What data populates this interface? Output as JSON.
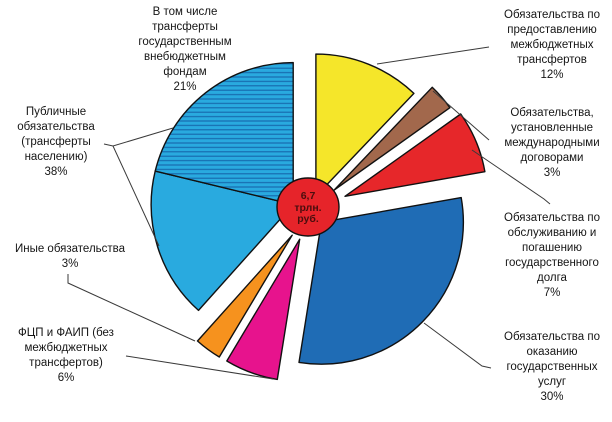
{
  "chart_data": {
    "type": "pie",
    "title": "",
    "center_total_label": "6,7\nтрлн.\nруб.",
    "legend_position": "none",
    "grid": false,
    "hatch_line_color": "#1666AB",
    "outline_color": "#111111",
    "leader_line_color": "#3a3a3a",
    "background_color": "#ffffff",
    "slices": [
      {
        "name": "Обязательства по предоставлению межбюджетных трансфертов",
        "pct_shown": "12%",
        "value": 12,
        "color": "#F5E62A",
        "explode": 16
      },
      {
        "name": "Обязательства, установленные международными договорами",
        "pct_shown": "3%",
        "value": 3,
        "color": "#A2684C",
        "explode": 32
      },
      {
        "name": "Обязательства по обслуживанию и погашению государственного долга",
        "pct_shown": "7%",
        "value": 7,
        "color": "#E6272A",
        "explode": 38
      },
      {
        "name": "Обязательства по оказанию государственных услуг",
        "pct_shown": "30%",
        "value": 30,
        "color": "#1F6CB5",
        "explode": 16
      },
      {
        "name": "ФЦП и ФАИП (без межбюджетных трансфертов)",
        "pct_shown": "6%",
        "value": 6,
        "color": "#E7138D",
        "explode": 30
      },
      {
        "name": "Иные обязательства",
        "pct_shown": "3%",
        "value": 3,
        "color": "#F6921E",
        "explode": 30
      },
      {
        "name": "Публичные обязательства (трансферты населению)",
        "pct_shown": "38%",
        "value": 17,
        "color": "#29AADF",
        "explode": 18,
        "explode_angle": 290.9
      },
      {
        "name": "В том числе трансферты государственным внебюджетным фондам",
        "pct_shown": "21%",
        "value": 21,
        "color": "#29AADF",
        "hatch": true,
        "explode": 18,
        "explode_angle": 290.9
      }
    ],
    "callouts": {
      "top_left": "В том числе\nтрансферты\nгосударственным\nвнебюджетным\nфондам\n21%",
      "left": "Публичные\nобязательства\n(трансферты\nнаселению)\n38%",
      "left_lower": "Иные обязательства\n3%",
      "bottom_left": "ФЦП и ФАИП (без\nмежбюджетных\nтрансфертов)\n6%",
      "top_right": "Обязательства по\nпредоставлению\nмежбюджетных\nтрансфертов\n12%",
      "right_upper": "Обязательства,\nустановленные\nмеждународными\nдоговорами\n3%",
      "right_mid": "Обязательства по\nобслуживанию и\nпогашению\nгосударственного\nдолга\n7%",
      "right_lower": "Обязательства по\nоказанию\nгосударственных\nуслуг\n30%"
    }
  }
}
